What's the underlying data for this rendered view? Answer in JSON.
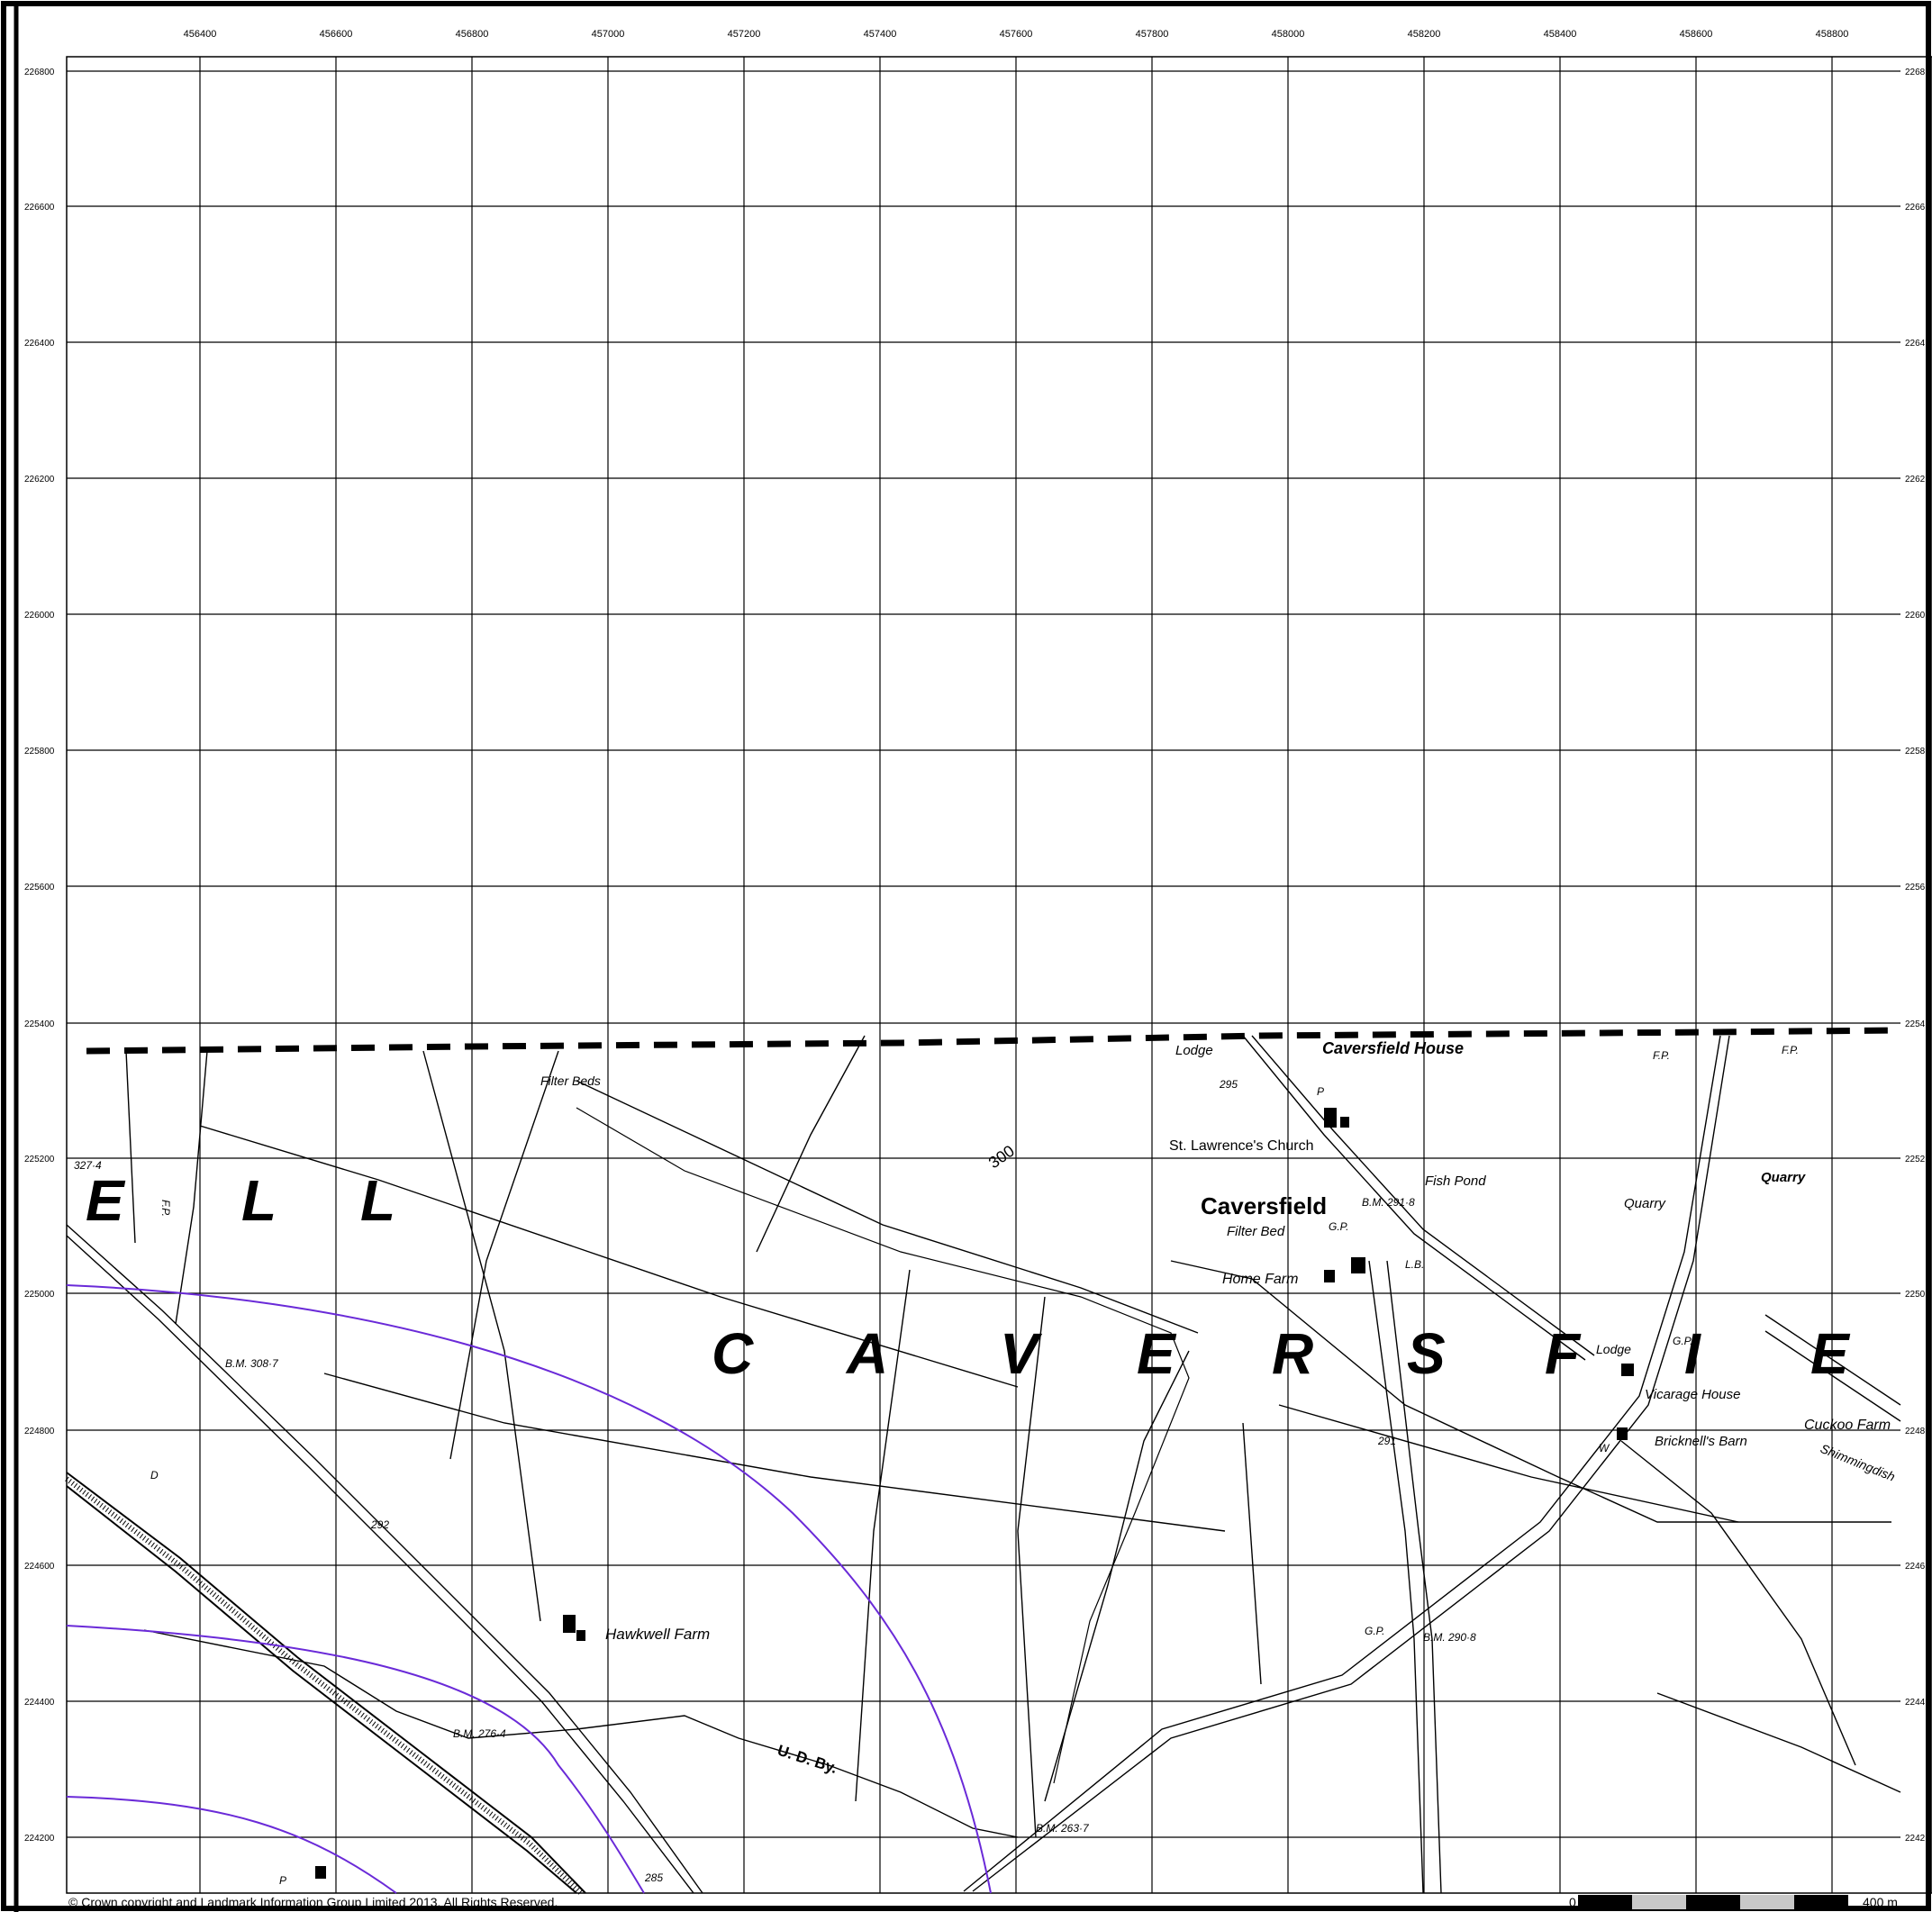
{
  "map": {
    "eastings": [
      "456400",
      "456600",
      "456800",
      "457000",
      "457200",
      "457400",
      "457600",
      "457800",
      "458000",
      "458200",
      "458400",
      "458600",
      "458800"
    ],
    "northings": [
      "226800",
      "226600",
      "226400",
      "226200",
      "226000",
      "225800",
      "225600",
      "225400",
      "225200",
      "225000",
      "224800",
      "224600",
      "224400",
      "224200"
    ],
    "right_labels": [
      "2268",
      "2266",
      "2264",
      "2262",
      "2260",
      "2258",
      "2256",
      "2254",
      "2252",
      "2250",
      "2248",
      "2246",
      "2244",
      "2242"
    ],
    "place_labels": {
      "caversfield_house": "Caversfield House",
      "st_lawrences_church": "St. Lawrence's Church",
      "caversfield": "Caversfield",
      "filter_bed": "Filter Bed",
      "filter_beds": "Filter Beds",
      "home_farm": "Home Farm",
      "fish_pond": "Fish Pond",
      "quarry_1": "Quarry",
      "quarry_2": "Quarry",
      "lodge_1": "Lodge",
      "lodge_2": "Lodge",
      "vicarage_house": "Vicarage House",
      "bricknells_barn": "Bricknell's Barn",
      "cuckoo_farm": "Cuckoo Farm",
      "shimmingdish": "Shimmingdish",
      "hawkwell_farm": "Hawkwell Farm",
      "ud_by": "U. D. By."
    },
    "parish_letters": {
      "left": [
        "E",
        "L",
        "L"
      ],
      "caversfield": [
        "C",
        "A",
        "V",
        "E",
        "R",
        "S",
        "F",
        "I",
        "E"
      ]
    },
    "spot_heights": {
      "bm_3087": "B.M. 308·7",
      "bm_2766": "B.M. 276·4",
      "bm_2637": "B.M. 263·7",
      "bm_2908": "B.M. 290·8",
      "bm_2918": "B.M. 291·8",
      "h_3274": "327·4",
      "h_292": "292",
      "h_291": "291",
      "h_295": "295",
      "h_285": "285",
      "contour_300": "300"
    },
    "small_labels": {
      "gp_1": "G.P.",
      "gp_2": "G.P.",
      "gp_3": "G.P.",
      "lb": "L.B.",
      "fp_1": "F.P.",
      "fp_2": "F.P.",
      "fp_3": "F.P.",
      "p_1": "P",
      "p_2": "P",
      "d": "D",
      "w": "W"
    }
  },
  "footer": {
    "copyright": "© Crown copyright and Landmark Information Group Limited 2013.  All Rights Reserved.",
    "scale_start": "0",
    "scale_end": "400 m"
  }
}
